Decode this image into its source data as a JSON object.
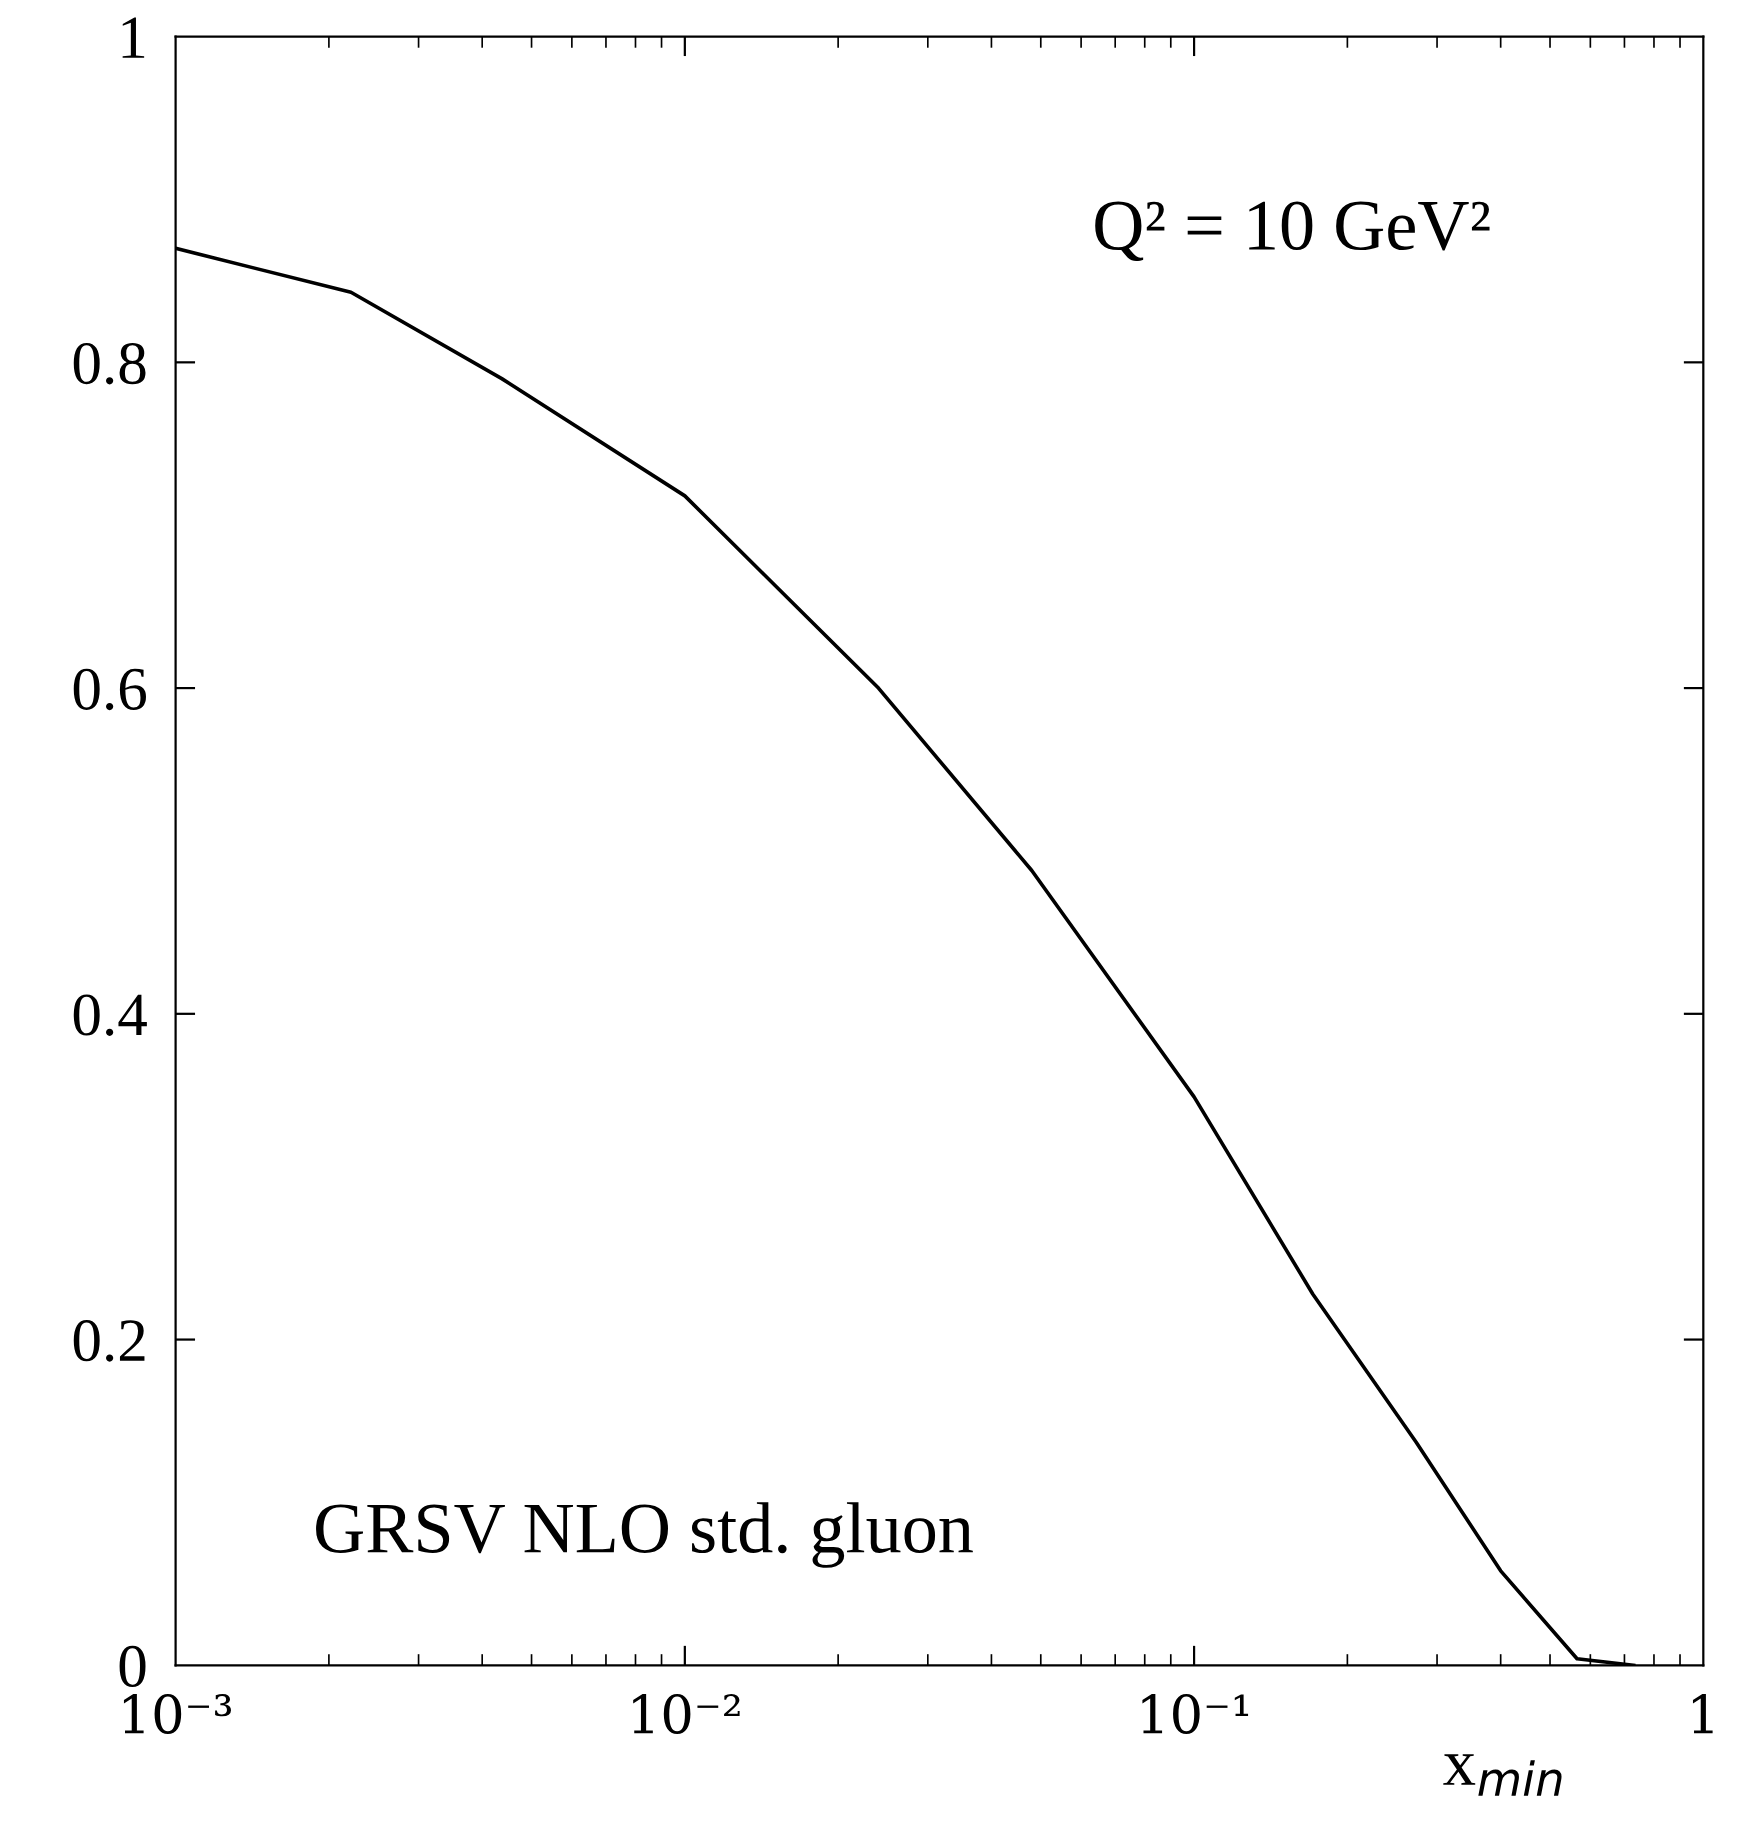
{
  "chart_data": {
    "type": "line",
    "xlabel": "x$_{min}$",
    "log": "x",
    "x": [
      0.001,
      0.00221,
      0.00437,
      0.01,
      0.024,
      0.048,
      0.1,
      0.171,
      0.273,
      0.4,
      0.565,
      0.73
    ],
    "series": [
      {
        "color": "#000000",
        "values": [
          0.87,
          0.843,
          0.79,
          0.718,
          0.6,
          0.488,
          0.349,
          0.228,
          0.137,
          0.058,
          0.004,
          0.0
        ]
      }
    ],
    "xlim": [
      0.001,
      1
    ],
    "ylim": [
      0,
      1
    ],
    "xticks": [
      {
        "value": 0.001,
        "label": "10⁻³"
      },
      {
        "value": 0.01,
        "label": "10⁻²"
      },
      {
        "value": 0.1,
        "label": "10⁻¹"
      },
      1
    ],
    "yticks": [
      0,
      0.2,
      0.4,
      0.6,
      0.8,
      1
    ],
    "annotations": [
      "Q² = 10 GeV²",
      "GRSV NLO std. gluon"
    ],
    "grid": false,
    "legend": false,
    "marker": "none",
    "line_style": "solid"
  }
}
